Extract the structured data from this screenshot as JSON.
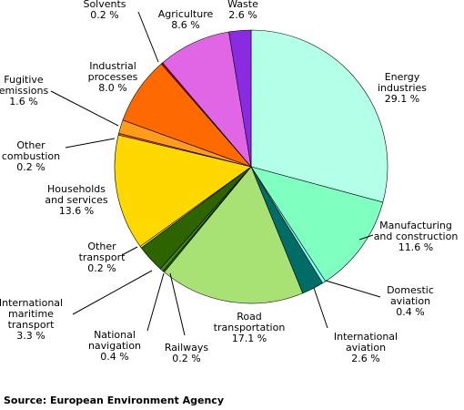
{
  "chart_data": {
    "type": "pie",
    "slices": [
      {
        "label": "Energy industries",
        "value": 29.1,
        "value_text": "29.1 %",
        "color": "#b3ffe8"
      },
      {
        "label": "Manufacturing and construction",
        "value": 11.6,
        "value_text": "11.6 %",
        "color": "#7fffc0"
      },
      {
        "label": "Domestic aviation",
        "value": 0.4,
        "value_text": "0.4 %",
        "color": "#80ffff"
      },
      {
        "label": "International aviation",
        "value": 2.6,
        "value_text": "2.6 %",
        "color": "#006c66"
      },
      {
        "label": "Road transportation",
        "value": 17.1,
        "value_text": "17.1 %",
        "color": "#a8e275"
      },
      {
        "label": "Railways",
        "value": 0.2,
        "value_text": "0.2 %",
        "color": "#2d6400"
      },
      {
        "label": "National navigation",
        "value": 0.4,
        "value_text": "0.4 %",
        "color": "#438c00"
      },
      {
        "label": "International maritime transport",
        "value": 3.3,
        "value_text": "3.3 %",
        "color": "#2d6400"
      },
      {
        "label": "Other transport",
        "value": 0.2,
        "value_text": "0.2 %",
        "color": "#ffff66"
      },
      {
        "label": "Households and services",
        "value": 13.6,
        "value_text": "13.6 %",
        "color": "#ffd800"
      },
      {
        "label": "Other combustion",
        "value": 0.2,
        "value_text": "0.2 %",
        "color": "#ff5500"
      },
      {
        "label": "Fugitive emissions",
        "value": 1.6,
        "value_text": "1.6 %",
        "color": "#ff9d1a"
      },
      {
        "label": "Industrial processes",
        "value": 8.0,
        "value_text": "8.0 %",
        "color": "#ff6a00"
      },
      {
        "label": "Solvents",
        "value": 0.2,
        "value_text": "0.2 %",
        "color": "#c00000"
      },
      {
        "label": "Agriculture",
        "value": 8.6,
        "value_text": "8.6 %",
        "color": "#e066e6"
      },
      {
        "label": "Waste",
        "value": 2.6,
        "value_text": "2.6 %",
        "color": "#8a2be2"
      }
    ],
    "source": "Source: European Environment Agency"
  }
}
